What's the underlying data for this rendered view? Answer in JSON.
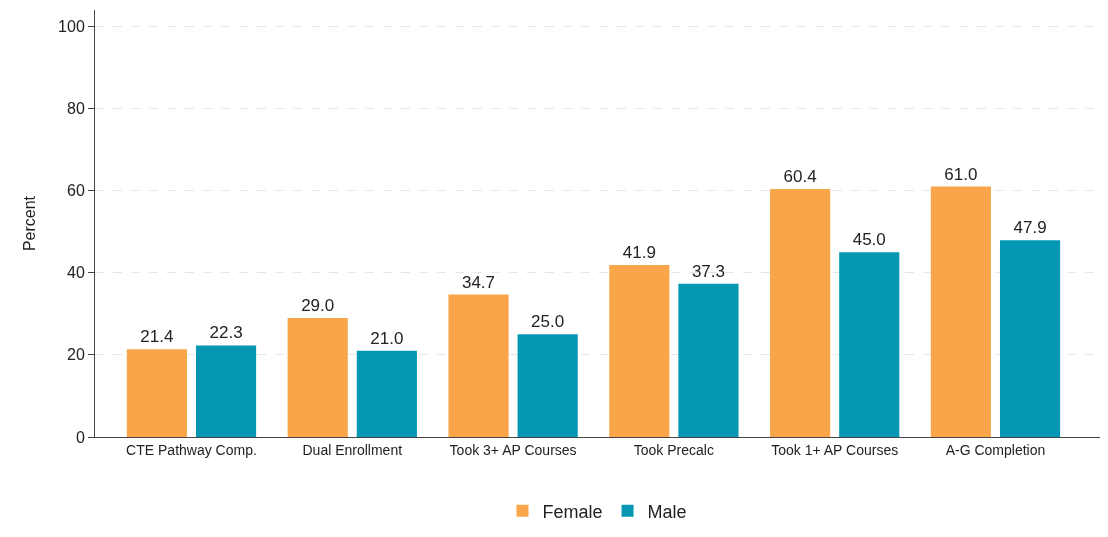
{
  "chart_data": {
    "type": "bar",
    "ylabel": "Percent",
    "categories": [
      "CTE Pathway Comp.",
      "Dual Enrollment",
      "Took 3+ AP Courses",
      "Took Precalc",
      "Took 1+ AP Courses",
      "A-G Completion"
    ],
    "series": [
      {
        "name": "Female",
        "color": "#f9a64a",
        "values": [
          21.4,
          29.0,
          34.7,
          41.9,
          60.4,
          61.0
        ],
        "value_labels": [
          "21.4",
          "29.0",
          "34.7",
          "41.9",
          "60.4",
          "61.0"
        ]
      },
      {
        "name": "Male",
        "color": "#0497b4",
        "values": [
          22.3,
          21.0,
          25.0,
          37.3,
          45.0,
          47.9
        ],
        "value_labels": [
          "22.3",
          "21.0",
          "25.0",
          "37.3",
          "45.0",
          "47.9"
        ]
      }
    ],
    "ylim": [
      0,
      104
    ],
    "yticks": [
      0,
      20,
      40,
      60,
      80,
      100
    ],
    "grid": "y",
    "legend": "bottom"
  }
}
